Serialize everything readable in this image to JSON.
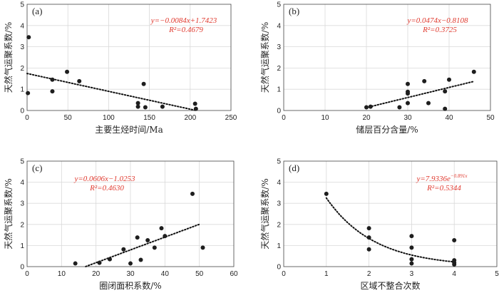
{
  "chart_data": [
    {
      "type": "scatter",
      "panel": "(a)",
      "xlabel": "主要生烃时间/Ma",
      "ylabel": "天然气运聚系数/%",
      "xlim": [
        0,
        250
      ],
      "ylim": [
        0,
        5
      ],
      "xticks": [
        0,
        50,
        100,
        150,
        200,
        250
      ],
      "yticks": [
        0,
        1,
        2,
        3,
        4,
        5
      ],
      "points": [
        {
          "x": 2,
          "y": 3.45
        },
        {
          "x": 1,
          "y": 0.82
        },
        {
          "x": 31,
          "y": 1.45
        },
        {
          "x": 31,
          "y": 0.9
        },
        {
          "x": 49,
          "y": 1.82
        },
        {
          "x": 64,
          "y": 1.38
        },
        {
          "x": 136,
          "y": 0.35
        },
        {
          "x": 136,
          "y": 0.18
        },
        {
          "x": 143,
          "y": 1.25
        },
        {
          "x": 145,
          "y": 0.15
        },
        {
          "x": 166,
          "y": 0.18
        },
        {
          "x": 206,
          "y": 0.32
        },
        {
          "x": 207,
          "y": 0.08
        }
      ],
      "trend": {
        "slope": -0.0084,
        "intercept": 1.7423,
        "x_range": [
          0,
          207
        ]
      },
      "equation": "y=−0.0084x+1.7423",
      "r2": "R²=0.4679",
      "grid": true
    },
    {
      "type": "scatter",
      "panel": "(b)",
      "xlabel": "储层百分含量/%",
      "ylabel": "天然气运聚系数/%",
      "xlim": [
        0,
        50
      ],
      "ylim": [
        0,
        5
      ],
      "xticks": [
        0,
        10,
        20,
        30,
        40,
        50
      ],
      "yticks": [
        0,
        1,
        2,
        3,
        4,
        5
      ],
      "points": [
        {
          "x": 20,
          "y": 0.15
        },
        {
          "x": 21,
          "y": 0.18
        },
        {
          "x": 28,
          "y": 0.15
        },
        {
          "x": 30,
          "y": 1.25
        },
        {
          "x": 30,
          "y": 0.88
        },
        {
          "x": 30,
          "y": 0.8
        },
        {
          "x": 30,
          "y": 0.35
        },
        {
          "x": 34,
          "y": 1.38
        },
        {
          "x": 35,
          "y": 0.35
        },
        {
          "x": 39,
          "y": 0.9
        },
        {
          "x": 39,
          "y": 0.08
        },
        {
          "x": 40,
          "y": 1.45
        },
        {
          "x": 46,
          "y": 1.82
        }
      ],
      "trend": {
        "slope": 0.0474,
        "intercept": -0.8108,
        "x_range": [
          20,
          46
        ]
      },
      "equation": "y=0.0474x−0.8108",
      "r2": "R²=0.3725",
      "grid": true
    },
    {
      "type": "scatter",
      "panel": "(c)",
      "xlabel": "圈闭面积系数/%",
      "ylabel": "天然气运聚系数/%",
      "xlim": [
        0,
        60
      ],
      "ylim": [
        0,
        5
      ],
      "xticks": [
        0,
        10,
        20,
        30,
        40,
        50,
        60
      ],
      "yticks": [
        0,
        1,
        2,
        3,
        4,
        5
      ],
      "points": [
        {
          "x": 14,
          "y": 0.15
        },
        {
          "x": 21,
          "y": 0.18
        },
        {
          "x": 24,
          "y": 0.35
        },
        {
          "x": 28,
          "y": 0.82
        },
        {
          "x": 30,
          "y": 0.15
        },
        {
          "x": 32,
          "y": 1.38
        },
        {
          "x": 33,
          "y": 0.32
        },
        {
          "x": 35,
          "y": 1.25
        },
        {
          "x": 37,
          "y": 0.9
        },
        {
          "x": 39,
          "y": 1.82
        },
        {
          "x": 40,
          "y": 1.45
        },
        {
          "x": 48,
          "y": 3.45
        },
        {
          "x": 51,
          "y": 0.9
        }
      ],
      "trend": {
        "slope": 0.0606,
        "intercept": -1.0253,
        "x_range": [
          17,
          50
        ]
      },
      "equation": "y=0.0606x−1.0253",
      "r2": "R²=0.4630",
      "grid": true
    },
    {
      "type": "scatter",
      "panel": "(d)",
      "xlabel": "区域不整合次数",
      "ylabel": "天然气运聚系数/%",
      "xlim": [
        0,
        5
      ],
      "ylim": [
        0,
        5
      ],
      "xticks": [
        0,
        1,
        2,
        3,
        4,
        5
      ],
      "yticks": [
        0,
        1,
        2,
        3,
        4,
        5
      ],
      "points": [
        {
          "x": 1,
          "y": 3.45
        },
        {
          "x": 2,
          "y": 1.82
        },
        {
          "x": 2,
          "y": 1.38
        },
        {
          "x": 2,
          "y": 0.82
        },
        {
          "x": 3,
          "y": 1.45
        },
        {
          "x": 3,
          "y": 0.9
        },
        {
          "x": 3,
          "y": 0.35
        },
        {
          "x": 3,
          "y": 0.15
        },
        {
          "x": 4,
          "y": 1.25
        },
        {
          "x": 4,
          "y": 0.3
        },
        {
          "x": 4,
          "y": 0.18
        },
        {
          "x": 4,
          "y": 0.1
        }
      ],
      "trend": {
        "type": "exponential",
        "coef": 7.9336,
        "rate": -0.891,
        "x_range": [
          1,
          4
        ]
      },
      "equation": "y=7.9336e",
      "equation_exp": "−0.891x",
      "r2": "R²=0.5344",
      "grid": true
    }
  ]
}
